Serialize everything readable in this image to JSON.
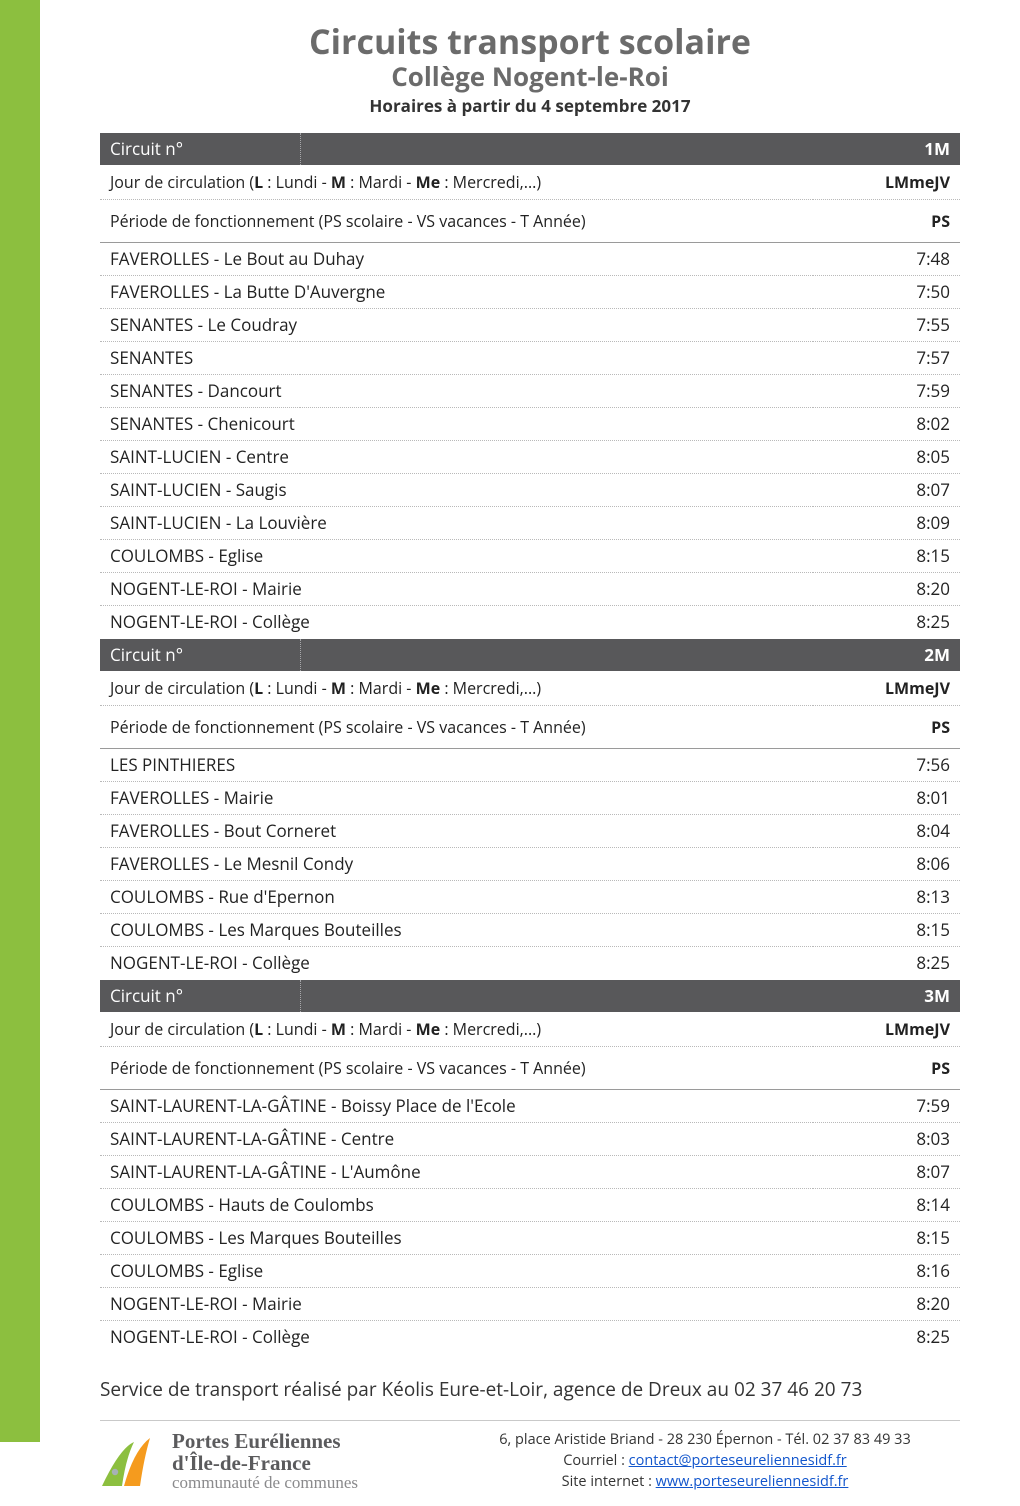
{
  "header": {
    "title": "Circuits transport scolaire",
    "subtitle": "Collège Nogent-le-Roi",
    "dateline": "Horaires à partir du 4 septembre 2017"
  },
  "row_labels": {
    "circuit": "Circuit n°",
    "jour_prefix": "Jour de circulation   (",
    "jour_L": "L",
    "jour_L_txt": " : Lundi - ",
    "jour_M": "M",
    "jour_M_txt": " : Mardi - ",
    "jour_Me": "Me",
    "jour_Me_txt": " : Mercredi,...)",
    "periode": "Période de fonctionnement   (PS scolaire - VS vacances - T Année)"
  },
  "circuits": [
    {
      "num": "1M",
      "jour": "LMmeJV",
      "periode": "PS",
      "stops": [
        {
          "name": "FAVEROLLES - Le Bout au Duhay",
          "time": "7:48"
        },
        {
          "name": "FAVEROLLES - La Butte D'Auvergne",
          "time": "7:50"
        },
        {
          "name": "SENANTES - Le Coudray",
          "time": "7:55"
        },
        {
          "name": "SENANTES",
          "time": "7:57"
        },
        {
          "name": "SENANTES - Dancourt",
          "time": "7:59"
        },
        {
          "name": "SENANTES - Chenicourt",
          "time": "8:02"
        },
        {
          "name": "SAINT-LUCIEN - Centre",
          "time": "8:05"
        },
        {
          "name": "SAINT-LUCIEN - Saugis",
          "time": "8:07"
        },
        {
          "name": "SAINT-LUCIEN - La Louvière",
          "time": "8:09"
        },
        {
          "name": "COULOMBS - Eglise",
          "time": "8:15"
        },
        {
          "name": "NOGENT-LE-ROI - Mairie",
          "time": "8:20"
        },
        {
          "name": "NOGENT-LE-ROI - Collège",
          "time": "8:25"
        }
      ]
    },
    {
      "num": "2M",
      "jour": "LMmeJV",
      "periode": "PS",
      "stops": [
        {
          "name": "LES PINTHIERES",
          "time": "7:56"
        },
        {
          "name": "FAVEROLLES - Mairie",
          "time": "8:01"
        },
        {
          "name": "FAVEROLLES - Bout Corneret",
          "time": "8:04"
        },
        {
          "name": "FAVEROLLES - Le Mesnil Condy",
          "time": "8:06"
        },
        {
          "name": "COULOMBS - Rue d'Epernon",
          "time": "8:13"
        },
        {
          "name": "COULOMBS - Les Marques Bouteilles",
          "time": "8:15"
        },
        {
          "name": "NOGENT-LE-ROI - Collège",
          "time": "8:25"
        }
      ]
    },
    {
      "num": "3M",
      "jour": "LMmeJV",
      "periode": "PS",
      "stops": [
        {
          "name": "SAINT-LAURENT-LA-GÂTINE - Boissy Place de l'Ecole",
          "time": "7:59"
        },
        {
          "name": "SAINT-LAURENT-LA-GÂTINE - Centre",
          "time": "8:03"
        },
        {
          "name": "SAINT-LAURENT-LA-GÂTINE - L'Aumône",
          "time": "8:07"
        },
        {
          "name": "COULOMBS - Hauts de Coulombs",
          "time": "8:14"
        },
        {
          "name": "COULOMBS - Les Marques Bouteilles",
          "time": "8:15"
        },
        {
          "name": "COULOMBS - Eglise",
          "time": "8:16"
        },
        {
          "name": "NOGENT-LE-ROI - Mairie",
          "time": "8:20"
        },
        {
          "name": "NOGENT-LE-ROI - Collège",
          "time": "8:25"
        }
      ]
    }
  ],
  "footer_note": "Service de transport réalisé par Kéolis Eure-et-Loir, agence de Dreux au 02 37 46 20 73",
  "footer_logo": {
    "line1": "Portes Euréliennes",
    "line2": "d'Île-de-France",
    "line3": "communauté de communes"
  },
  "contact": {
    "address": "6, place Aristide Briand - 28 230 Épernon - Tél. 02 37 83 49 33",
    "email_label": "Courriel : ",
    "email": "contact@porteseureliennesidf.fr",
    "site_label": "Site internet : ",
    "site": "www.porteseureliennesidf.fr"
  },
  "colors": {
    "green": "#8cbf3f",
    "header_grey": "#58585a",
    "title_grey": "#6b6b6b",
    "link_blue": "#1155cc",
    "orange": "#f59b1e"
  }
}
